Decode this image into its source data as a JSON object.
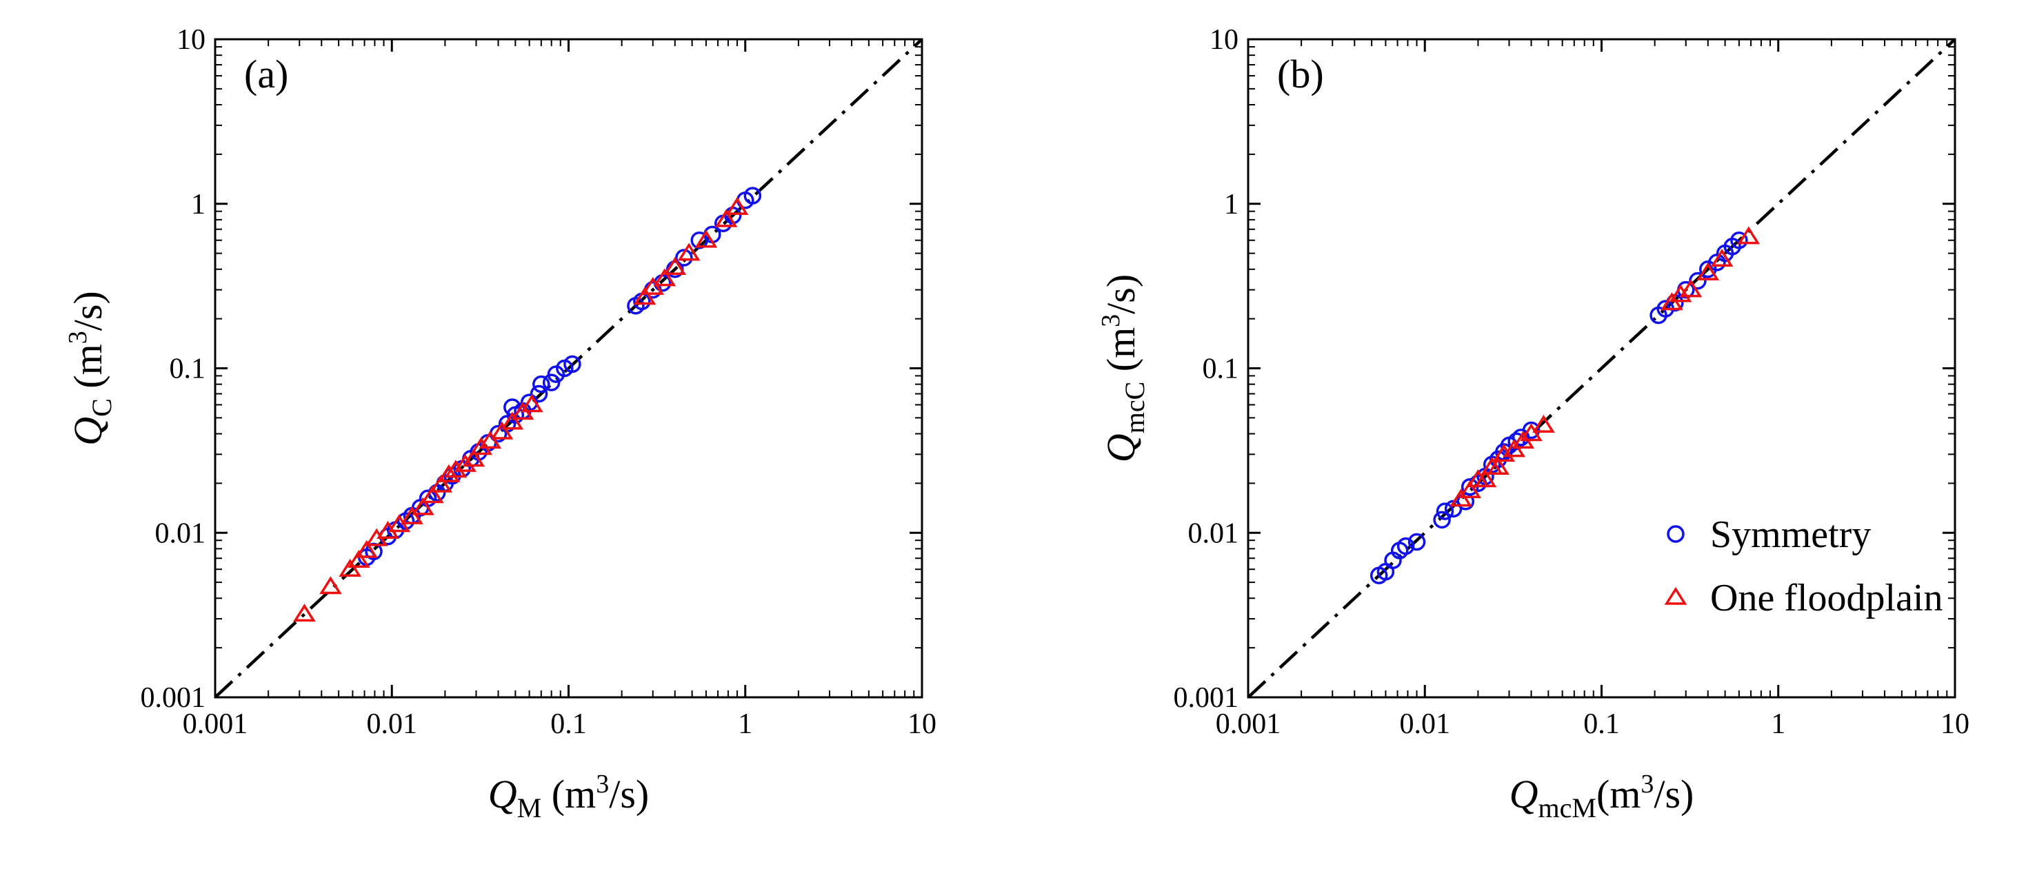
{
  "chart_data": [
    {
      "type": "scatter",
      "panel_label": "(a)",
      "scale": "log-log",
      "xlim": [
        0.001,
        10
      ],
      "ylim": [
        0.001,
        10
      ],
      "x_ticks": [
        "0.001",
        "0.01",
        "0.1",
        "1",
        "10"
      ],
      "y_ticks": [
        "0.001",
        "0.01",
        "0.1",
        "1",
        "10"
      ],
      "xlabel": {
        "symbol": "Q",
        "sub": "M",
        "unit_pre": " (m",
        "sup": "3",
        "unit_post": "/s)"
      },
      "ylabel": {
        "symbol": "Q",
        "sub": "C",
        "unit_pre": " (m",
        "sup": "3",
        "unit_post": "/s)"
      },
      "reference_line": "y = x",
      "legend": null,
      "series": [
        {
          "name": "Symmetry",
          "marker": "circle",
          "color": "#1010ee",
          "points": [
            [
              0.0072,
              0.0071
            ],
            [
              0.0079,
              0.0077
            ],
            [
              0.0095,
              0.0095
            ],
            [
              0.0105,
              0.0104
            ],
            [
              0.012,
              0.0118
            ],
            [
              0.013,
              0.0127
            ],
            [
              0.0145,
              0.0142
            ],
            [
              0.016,
              0.0162
            ],
            [
              0.018,
              0.0175
            ],
            [
              0.02,
              0.02
            ],
            [
              0.022,
              0.0222
            ],
            [
              0.025,
              0.0245
            ],
            [
              0.028,
              0.0282
            ],
            [
              0.031,
              0.031
            ],
            [
              0.035,
              0.0352
            ],
            [
              0.04,
              0.04
            ],
            [
              0.045,
              0.046
            ],
            [
              0.05,
              0.052
            ],
            [
              0.048,
              0.058
            ],
            [
              0.055,
              0.055
            ],
            [
              0.06,
              0.062
            ],
            [
              0.068,
              0.07
            ],
            [
              0.07,
              0.08
            ],
            [
              0.08,
              0.082
            ],
            [
              0.085,
              0.092
            ],
            [
              0.095,
              0.1
            ],
            [
              0.105,
              0.106
            ],
            [
              0.24,
              0.24
            ],
            [
              0.26,
              0.255
            ],
            [
              0.3,
              0.3
            ],
            [
              0.34,
              0.33
            ],
            [
              0.4,
              0.4
            ],
            [
              0.45,
              0.47
            ],
            [
              0.55,
              0.6
            ],
            [
              0.65,
              0.65
            ],
            [
              0.75,
              0.76
            ],
            [
              0.85,
              0.85
            ],
            [
              1.0,
              1.05
            ],
            [
              1.1,
              1.12
            ]
          ]
        },
        {
          "name": "One floodplain",
          "marker": "triangle",
          "color": "#ee1010",
          "points": [
            [
              0.0032,
              0.0032
            ],
            [
              0.0045,
              0.0047
            ],
            [
              0.0058,
              0.006
            ],
            [
              0.0065,
              0.0068
            ],
            [
              0.0072,
              0.0078
            ],
            [
              0.0082,
              0.0092
            ],
            [
              0.0095,
              0.0102
            ],
            [
              0.011,
              0.0112
            ],
            [
              0.013,
              0.0125
            ],
            [
              0.015,
              0.0142
            ],
            [
              0.017,
              0.0168
            ],
            [
              0.019,
              0.0195
            ],
            [
              0.021,
              0.0225
            ],
            [
              0.023,
              0.024
            ],
            [
              0.026,
              0.026
            ],
            [
              0.029,
              0.028
            ],
            [
              0.032,
              0.033
            ],
            [
              0.036,
              0.036
            ],
            [
              0.042,
              0.041
            ],
            [
              0.048,
              0.047
            ],
            [
              0.055,
              0.054
            ],
            [
              0.062,
              0.06
            ],
            [
              0.27,
              0.27
            ],
            [
              0.3,
              0.31
            ],
            [
              0.35,
              0.35
            ],
            [
              0.4,
              0.41
            ],
            [
              0.48,
              0.5
            ],
            [
              0.6,
              0.6
            ],
            [
              0.78,
              0.8
            ],
            [
              0.9,
              0.95
            ]
          ]
        }
      ]
    },
    {
      "type": "scatter",
      "panel_label": "(b)",
      "scale": "log-log",
      "xlim": [
        0.001,
        10
      ],
      "ylim": [
        0.001,
        10
      ],
      "x_ticks": [
        "0.001",
        "0.01",
        "0.1",
        "1",
        "10"
      ],
      "y_ticks": [
        "0.001",
        "0.01",
        "0.1",
        "1",
        "10"
      ],
      "xlabel": {
        "symbol": "Q",
        "sub": "mcM",
        "unit_pre": "(m",
        "sup": "3",
        "unit_post": "/s)"
      },
      "ylabel": {
        "symbol": "Q",
        "sub": "mcC",
        "unit_pre": " (m",
        "sup": "3",
        "unit_post": "/s)"
      },
      "reference_line": "y = x",
      "legend": {
        "position": "bottom-right",
        "entries": [
          "Symmetry",
          "One floodplain"
        ]
      },
      "series": [
        {
          "name": "Symmetry",
          "marker": "circle",
          "color": "#1010ee",
          "points": [
            [
              0.0055,
              0.0055
            ],
            [
              0.006,
              0.0058
            ],
            [
              0.0066,
              0.0068
            ],
            [
              0.0072,
              0.0078
            ],
            [
              0.0078,
              0.0083
            ],
            [
              0.009,
              0.0088
            ],
            [
              0.0125,
              0.012
            ],
            [
              0.013,
              0.0135
            ],
            [
              0.0145,
              0.014
            ],
            [
              0.017,
              0.0155
            ],
            [
              0.018,
              0.019
            ],
            [
              0.02,
              0.02
            ],
            [
              0.022,
              0.022
            ],
            [
              0.024,
              0.026
            ],
            [
              0.026,
              0.028
            ],
            [
              0.028,
              0.031
            ],
            [
              0.03,
              0.034
            ],
            [
              0.033,
              0.036
            ],
            [
              0.035,
              0.038
            ],
            [
              0.04,
              0.042
            ],
            [
              0.21,
              0.21
            ],
            [
              0.23,
              0.23
            ],
            [
              0.26,
              0.25
            ],
            [
              0.3,
              0.3
            ],
            [
              0.35,
              0.34
            ],
            [
              0.4,
              0.4
            ],
            [
              0.45,
              0.44
            ],
            [
              0.5,
              0.5
            ],
            [
              0.55,
              0.55
            ],
            [
              0.6,
              0.6
            ]
          ]
        },
        {
          "name": "One floodplain",
          "marker": "triangle",
          "color": "#ee1010",
          "points": [
            [
              0.016,
              0.016
            ],
            [
              0.018,
              0.018
            ],
            [
              0.02,
              0.021
            ],
            [
              0.022,
              0.021
            ],
            [
              0.024,
              0.025
            ],
            [
              0.026,
              0.025
            ],
            [
              0.028,
              0.03
            ],
            [
              0.032,
              0.032
            ],
            [
              0.036,
              0.036
            ],
            [
              0.04,
              0.04
            ],
            [
              0.047,
              0.045
            ],
            [
              0.25,
              0.25
            ],
            [
              0.28,
              0.28
            ],
            [
              0.32,
              0.3
            ],
            [
              0.4,
              0.38
            ],
            [
              0.48,
              0.46
            ],
            [
              0.68,
              0.63
            ]
          ]
        }
      ]
    }
  ]
}
